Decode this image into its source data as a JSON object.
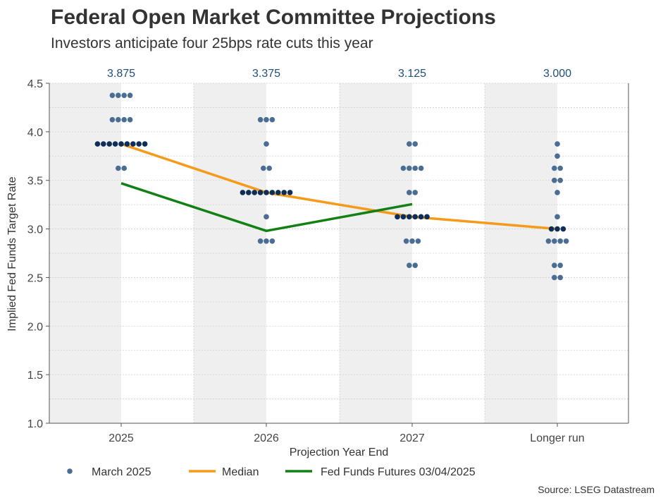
{
  "header": {
    "title": "Federal Open Market Committee Projections",
    "subtitle": "Investors anticipate four 25bps rate cuts this year"
  },
  "source": "Source: LSEG Datastream",
  "colors": {
    "dots": "#4a6d94",
    "median_dots": "#0e2d57",
    "median_line": "#f59a1b",
    "futures_line": "#138013",
    "band": "#efefef",
    "label_color": "#1f4e79"
  },
  "chart_data": {
    "type": "scatter",
    "title": "Federal Open Market Committee Projections",
    "subtitle": "Investors anticipate four 25bps rate cuts this year",
    "xlabel": "Projection Year End",
    "ylabel": "Implied Fed Funds Target Rate",
    "categories": [
      "2025",
      "2026",
      "2027",
      "Longer run"
    ],
    "ylim": [
      1.0,
      4.5
    ],
    "yticks": [
      "1.0",
      "1.5",
      "2.0",
      "2.5",
      "3.0",
      "3.5",
      "4.0",
      "4.5"
    ],
    "median_labels": [
      "3.875",
      "3.375",
      "3.125",
      "3.000"
    ],
    "legend": [
      "March 2025",
      "Median",
      "Fed Funds Futures 03/04/2025"
    ],
    "legend_position": "bottom",
    "dot_plot": [
      [
        {
          "rate": 4.375,
          "count": 4
        },
        {
          "rate": 4.125,
          "count": 4
        },
        {
          "rate": 3.875,
          "count": 9
        },
        {
          "rate": 3.625,
          "count": 2
        }
      ],
      [
        {
          "rate": 4.125,
          "count": 3
        },
        {
          "rate": 3.875,
          "count": 1
        },
        {
          "rate": 3.625,
          "count": 2
        },
        {
          "rate": 3.375,
          "count": 9
        },
        {
          "rate": 3.125,
          "count": 1
        },
        {
          "rate": 2.875,
          "count": 3
        }
      ],
      [
        {
          "rate": 3.875,
          "count": 2
        },
        {
          "rate": 3.625,
          "count": 4
        },
        {
          "rate": 3.375,
          "count": 2
        },
        {
          "rate": 3.125,
          "count": 6
        },
        {
          "rate": 2.875,
          "count": 3
        },
        {
          "rate": 2.625,
          "count": 2
        }
      ],
      [
        {
          "rate": 3.875,
          "count": 1
        },
        {
          "rate": 3.75,
          "count": 1
        },
        {
          "rate": 3.625,
          "count": 2
        },
        {
          "rate": 3.5,
          "count": 2
        },
        {
          "rate": 3.375,
          "count": 1
        },
        {
          "rate": 3.125,
          "count": 1
        },
        {
          "rate": 3.0,
          "count": 3
        },
        {
          "rate": 2.875,
          "count": 4
        },
        {
          "rate": 2.625,
          "count": 2
        },
        {
          "rate": 2.5,
          "count": 2
        }
      ]
    ],
    "median": [
      3.875,
      3.375,
      3.125,
      3.0
    ],
    "median_series_name": "Median",
    "fed_funds_futures": {
      "name": "Fed Funds Futures 03/04/2025",
      "points": [
        {
          "x": 0,
          "y": 3.47
        },
        {
          "x": 1,
          "y": 2.98
        },
        {
          "x": 2,
          "y": 3.255
        }
      ]
    }
  }
}
